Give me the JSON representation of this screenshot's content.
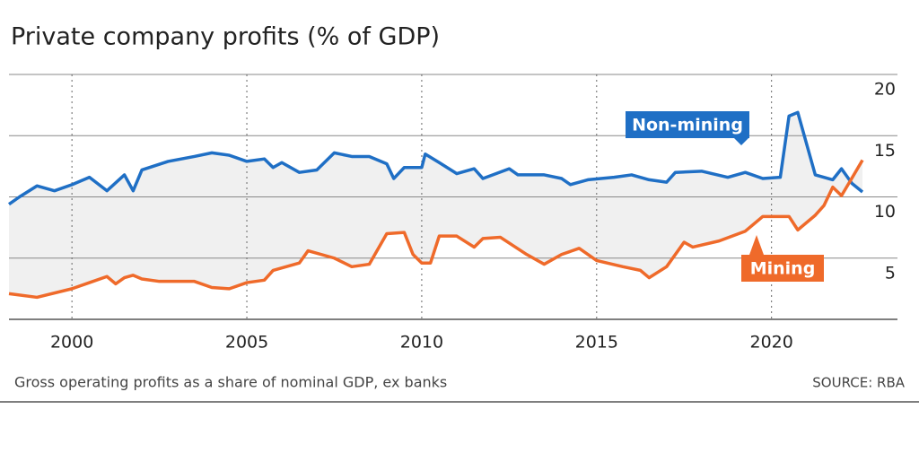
{
  "chart_data": {
    "type": "line",
    "title": "Private company profits (% of GDP)",
    "note": "Gross operating profits as a share of nominal GDP, ex banks",
    "source": "SOURCE: RBA",
    "xlim": [
      1998.2,
      2023.6
    ],
    "xticks": [
      2000,
      2005,
      2010,
      2015,
      2020
    ],
    "ylim": [
      0,
      20
    ],
    "yticks": [
      5,
      10,
      15,
      20
    ],
    "grid": true,
    "series": [
      {
        "name": "Non-mining",
        "color": "#1f6fc5",
        "x": [
          1998.2,
          1998.5,
          1999,
          1999.5,
          2000,
          2000.5,
          2001,
          2001.5,
          2001.75,
          2002,
          2002.75,
          2003.5,
          2004,
          2004.5,
          2005,
          2005.5,
          2005.75,
          2006,
          2006.5,
          2007,
          2007.5,
          2008,
          2008.5,
          2009,
          2009.2,
          2009.5,
          2010,
          2010.1,
          2010.5,
          2011,
          2011.5,
          2011.75,
          2012.5,
          2012.75,
          2013.5,
          2014,
          2014.25,
          2014.75,
          2015.5,
          2016,
          2016.5,
          2017,
          2017.25,
          2018,
          2018.75,
          2019.25,
          2019.75,
          2020.25,
          2020.5,
          2020.75,
          2021.25,
          2021.75,
          2022,
          2022.3,
          2022.6
        ],
        "values": [
          9.4,
          10.0,
          10.9,
          10.5,
          11.0,
          11.6,
          10.5,
          11.8,
          10.5,
          12.2,
          12.9,
          13.3,
          13.6,
          13.4,
          12.9,
          13.1,
          12.4,
          12.8,
          12.0,
          12.2,
          13.6,
          13.3,
          13.3,
          12.7,
          11.5,
          12.4,
          12.4,
          13.5,
          12.8,
          11.9,
          12.3,
          11.5,
          12.3,
          11.8,
          11.8,
          11.5,
          11.0,
          11.4,
          11.6,
          11.8,
          11.4,
          11.2,
          12.0,
          12.1,
          11.6,
          12.0,
          11.5,
          11.6,
          16.6,
          16.9,
          11.8,
          11.4,
          12.3,
          11.1,
          10.4
        ]
      },
      {
        "name": "Mining",
        "color": "#ef6a2a",
        "x": [
          1998.2,
          1999,
          2000,
          2000.5,
          2001,
          2001.25,
          2001.5,
          2001.75,
          2002,
          2002.5,
          2003.5,
          2004,
          2004.5,
          2005,
          2005.5,
          2005.75,
          2006.5,
          2006.75,
          2007.5,
          2008,
          2008.5,
          2009,
          2009.5,
          2009.75,
          2010,
          2010.25,
          2010.5,
          2011,
          2011.5,
          2011.75,
          2012.25,
          2013,
          2013.5,
          2014,
          2014.5,
          2015,
          2015.75,
          2016.25,
          2016.5,
          2017,
          2017.5,
          2017.75,
          2018.5,
          2019.25,
          2019.75,
          2020.5,
          2020.75,
          2021.25,
          2021.5,
          2021.75,
          2022,
          2022.25,
          2022.6
        ],
        "values": [
          2.1,
          1.8,
          2.5,
          3.0,
          3.5,
          2.9,
          3.4,
          3.6,
          3.3,
          3.1,
          3.1,
          2.6,
          2.5,
          3.0,
          3.2,
          4.0,
          4.6,
          5.6,
          5.0,
          4.3,
          4.5,
          7.0,
          7.1,
          5.3,
          4.6,
          4.6,
          6.8,
          6.8,
          5.9,
          6.6,
          6.7,
          5.3,
          4.5,
          5.3,
          5.8,
          4.8,
          4.3,
          4.0,
          3.4,
          4.3,
          6.3,
          5.9,
          6.4,
          7.2,
          8.4,
          8.4,
          7.3,
          8.5,
          9.3,
          10.8,
          10.1,
          11.3,
          13.0
        ]
      }
    ]
  }
}
